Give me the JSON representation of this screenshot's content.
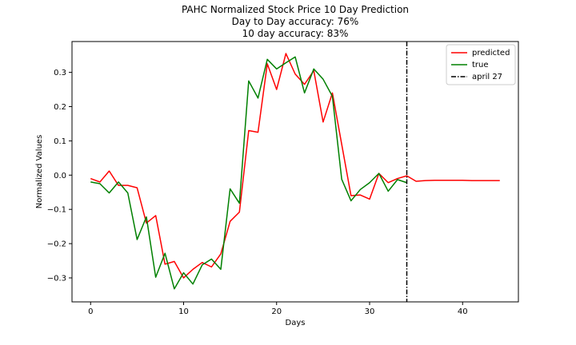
{
  "chart_data": {
    "type": "line",
    "title_lines": [
      "PAHC Normalized Stock Price 10 Day Prediction",
      "Day to Day accuracy: 76%",
      "10 day accuracy: 83%"
    ],
    "xlabel": "Days",
    "ylabel": "Normalized Values",
    "xlim": [
      -2,
      46
    ],
    "ylim": [
      -0.37,
      0.39
    ],
    "xticks": [
      0,
      10,
      20,
      30,
      40
    ],
    "yticks": [
      -0.3,
      -0.2,
      -0.1,
      0.0,
      0.1,
      0.2,
      0.3
    ],
    "xtick_labels": [
      "0",
      "10",
      "20",
      "30",
      "40"
    ],
    "ytick_labels": [
      "−0.3",
      "−0.2",
      "−0.1",
      "0.0",
      "0.1",
      "0.2",
      "0.3"
    ],
    "grid": false,
    "legend_position": "top-right",
    "series": [
      {
        "name": "predicted",
        "color": "#ff0000",
        "style": "solid",
        "x": [
          0,
          1,
          2,
          3,
          4,
          5,
          6,
          7,
          8,
          9,
          10,
          11,
          12,
          13,
          14,
          15,
          16,
          17,
          18,
          19,
          20,
          21,
          22,
          23,
          24,
          25,
          26,
          27,
          28,
          29,
          30,
          31,
          32,
          33,
          34,
          35,
          36,
          37,
          38,
          39,
          40,
          41,
          42,
          43,
          44
        ],
        "values": [
          -0.01,
          -0.02,
          0.012,
          -0.03,
          -0.03,
          -0.037,
          -0.14,
          -0.118,
          -0.26,
          -0.252,
          -0.3,
          -0.275,
          -0.255,
          -0.268,
          -0.23,
          -0.135,
          -0.108,
          0.13,
          0.125,
          0.325,
          0.25,
          0.355,
          0.295,
          0.265,
          0.305,
          0.155,
          0.24,
          0.09,
          -0.06,
          -0.058,
          -0.07,
          0.005,
          -0.022,
          -0.01,
          -0.002,
          -0.018,
          -0.016,
          -0.015,
          -0.015,
          -0.015,
          -0.015,
          -0.016,
          -0.016,
          -0.016,
          -0.016
        ]
      },
      {
        "name": "true",
        "color": "#008000",
        "style": "solid",
        "x": [
          0,
          1,
          2,
          3,
          4,
          5,
          6,
          7,
          8,
          9,
          10,
          11,
          12,
          13,
          14,
          15,
          16,
          17,
          18,
          19,
          20,
          21,
          22,
          23,
          24,
          25,
          26,
          27,
          28,
          29,
          30,
          31,
          32,
          33,
          34
        ],
        "values": [
          -0.02,
          -0.025,
          -0.052,
          -0.02,
          -0.052,
          -0.188,
          -0.122,
          -0.298,
          -0.228,
          -0.332,
          -0.285,
          -0.318,
          -0.262,
          -0.245,
          -0.275,
          -0.04,
          -0.082,
          0.275,
          0.225,
          0.338,
          0.31,
          0.328,
          0.345,
          0.24,
          0.31,
          0.28,
          0.23,
          -0.012,
          -0.075,
          -0.042,
          -0.022,
          0.005,
          -0.047,
          -0.013,
          -0.022
        ]
      }
    ],
    "vline": {
      "name": "april 27",
      "x": 34,
      "color": "#000000",
      "style": "dashdot"
    }
  }
}
